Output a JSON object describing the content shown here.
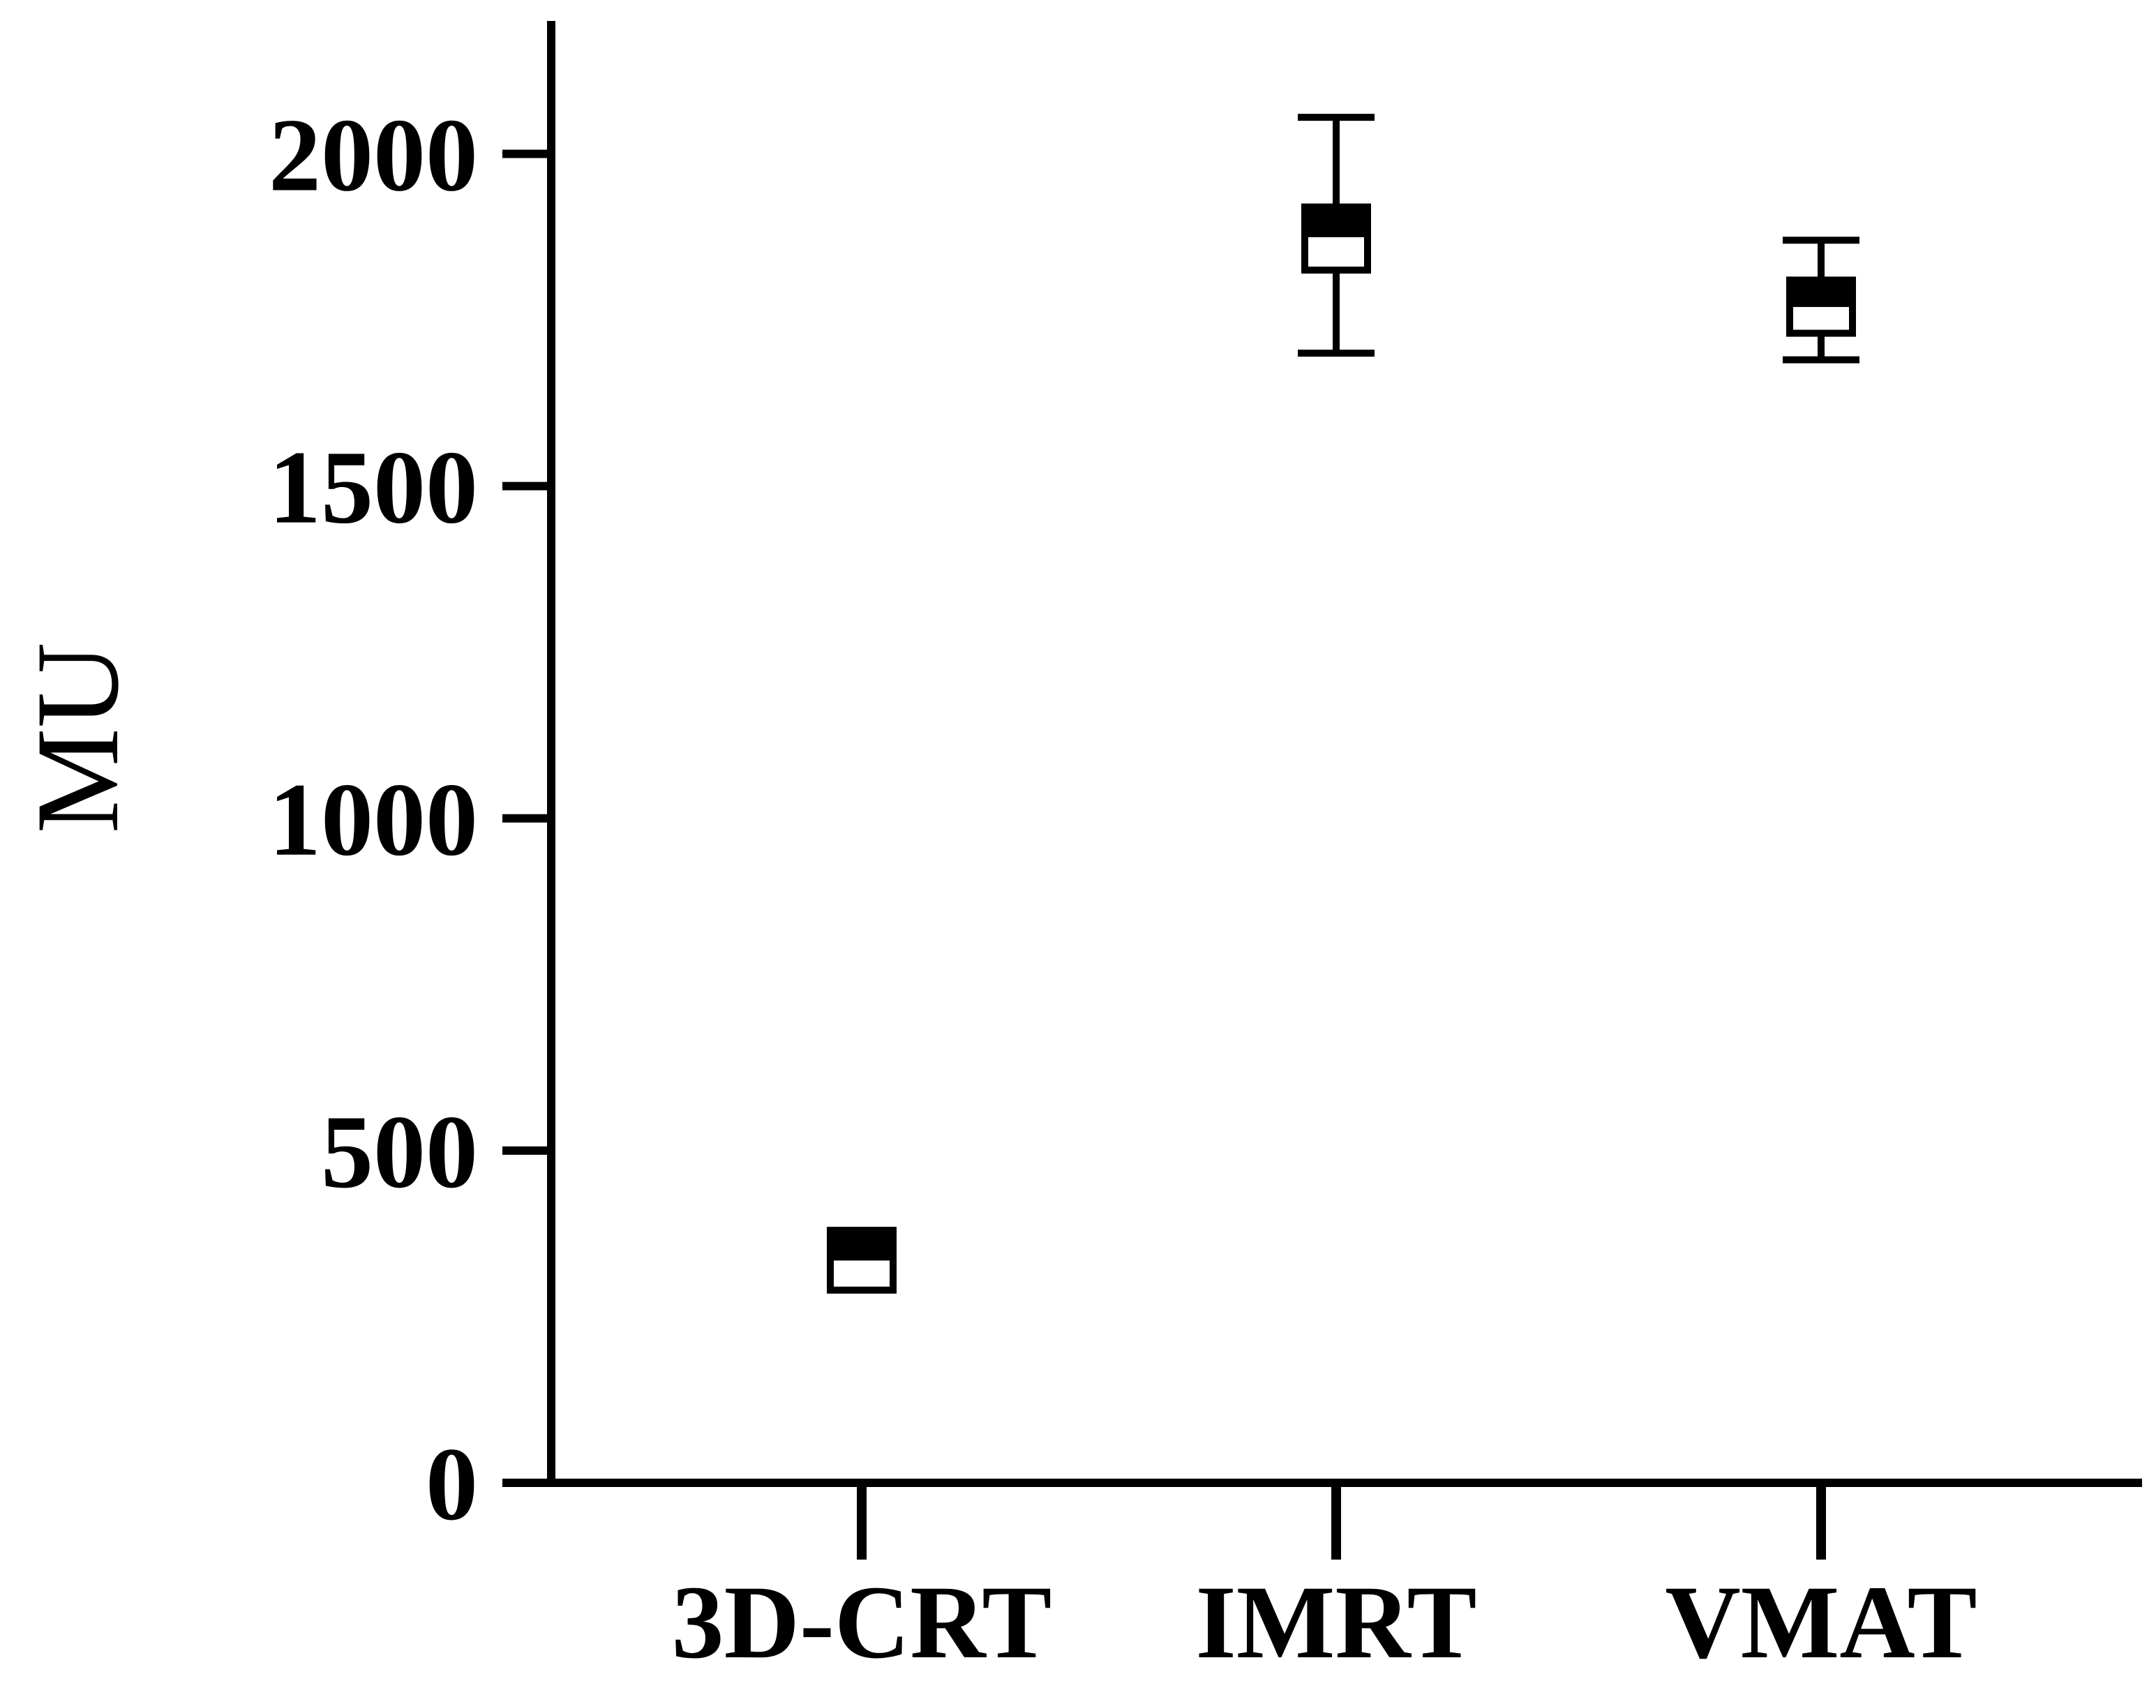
{
  "chart_data": {
    "type": "box",
    "title": "",
    "xlabel": "",
    "ylabel": "MU",
    "ylim": [
      0,
      2200
    ],
    "yticks": [
      0,
      500,
      1000,
      1500,
      2000
    ],
    "grid": false,
    "categories": [
      "3D-CRT",
      "IMRT",
      "VMAT"
    ],
    "series": [
      {
        "values": [
          {
            "category": "3D-CRT",
            "min": 290,
            "q1": 290,
            "median": 340,
            "q3": 380,
            "max": 380
          },
          {
            "category": "IMRT",
            "min": 1700,
            "q1": 1825,
            "median": 1880,
            "q3": 1920,
            "max": 2055
          },
          {
            "category": "VMAT",
            "min": 1690,
            "q1": 1730,
            "median": 1775,
            "q3": 1810,
            "max": 1870
          }
        ]
      }
    ],
    "colors": {
      "axis": "#000000",
      "box_fill_upper": "#000000",
      "box_fill_lower": "#ffffff"
    }
  }
}
